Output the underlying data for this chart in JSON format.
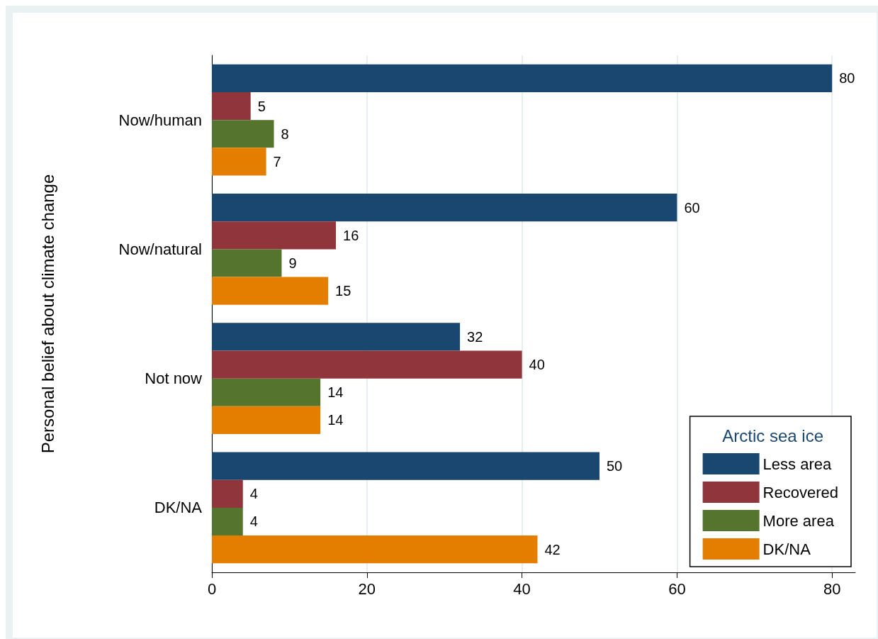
{
  "chart_data": {
    "type": "bar",
    "orientation": "horizontal",
    "ylabel": "Personal belief about climate change",
    "legend_title": "Arctic sea ice",
    "categories": [
      "Now/human",
      "Now/natural",
      "Not now",
      "DK/NA"
    ],
    "series": [
      {
        "name": "Less area",
        "color": "#1a476f",
        "values": [
          80,
          60,
          32,
          50
        ]
      },
      {
        "name": "Recovered",
        "color": "#90353b",
        "values": [
          5,
          16,
          40,
          4
        ]
      },
      {
        "name": "More area",
        "color": "#55752f",
        "values": [
          8,
          9,
          14,
          4
        ]
      },
      {
        "name": "DK/NA",
        "color": "#e37e00",
        "values": [
          7,
          15,
          14,
          42
        ]
      }
    ],
    "xlim": [
      0,
      83
    ],
    "xticks": [
      0,
      20,
      40,
      60,
      80
    ],
    "grid": "x",
    "legend": "bottom right",
    "data_labels": true
  }
}
